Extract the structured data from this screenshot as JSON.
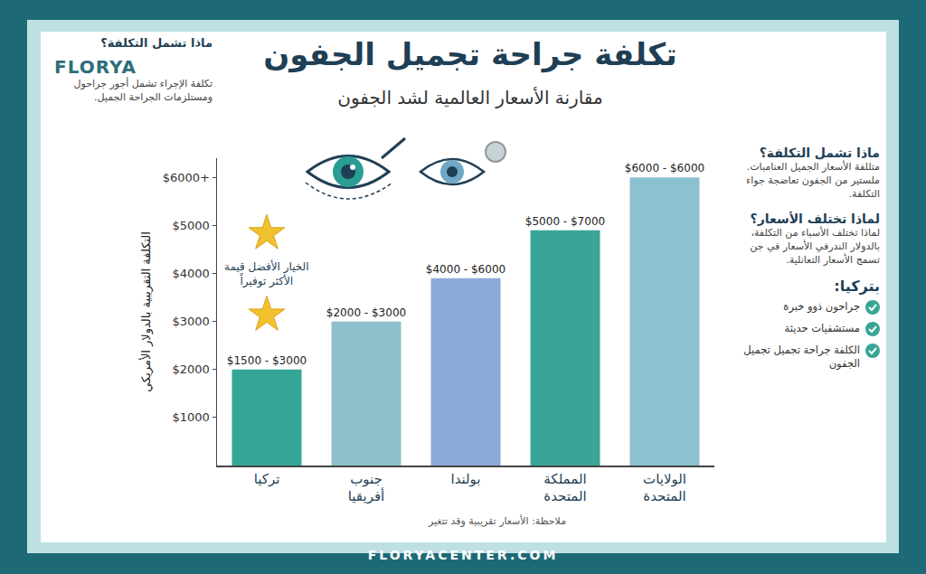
{
  "header": {
    "title": "تكلفة جراحة تجميل الجفون",
    "subtitle": "مقارنة الأسعار العالمية لشد الجفون",
    "logo": "FLORYA"
  },
  "top_panel": {
    "heading": "ماذا تشمل التكلفة؟",
    "text": "تكلفة الإجراء تشمل أجور جراحول ومستلزمات الجراحة الجميل."
  },
  "chart_data": {
    "type": "bar",
    "y_label": "التكلفة التقريبية بالدولار الأمريكي",
    "categories": [
      "تركيا",
      "جنوب أفريقيا",
      "بولندا",
      "المملكة المتحدة",
      "الولايات المتحدة"
    ],
    "values": [
      2000,
      3000,
      3900,
      4900,
      6000
    ],
    "range_labels": [
      "$1500 - $3000",
      "$2000 - $3000",
      "$4000 - $6000",
      "$5000 - $7000",
      "$6000 - $6000"
    ],
    "colors": [
      "#35a596",
      "#8fbfcb",
      "#8eaad9",
      "#3aa597",
      "#8cc1cf"
    ],
    "ylim": [
      0,
      6400
    ],
    "yticks": [
      {
        "value": 1000,
        "label": "$1000"
      },
      {
        "value": 2000,
        "label": "$2000"
      },
      {
        "value": 3000,
        "label": "$3000"
      },
      {
        "value": 4000,
        "label": "$4000"
      },
      {
        "value": 5000,
        "label": "$5000"
      },
      {
        "value": 6000,
        "label": "$6000+"
      }
    ],
    "grid": false,
    "annotations": [
      {
        "category": "تركيا",
        "text": "الخيار الأفضل قيمة الأكثر توفيراً"
      }
    ]
  },
  "side_panel": {
    "sections": [
      {
        "heading": "ماذا تشمل التكلفة؟",
        "text": "متللفة الأسعار الجميل العنامبات. ملستير من الجفون تعاضجة جواء التكلفة."
      },
      {
        "heading": "لماذا تختلف الأسعار؟",
        "text": "لماذا تختلف الأسباء من التكلفة، بالدولار الندرفي الأسعار في جن تسمج الأسعار التعانلية."
      }
    ],
    "checklist": {
      "heading": "بتركيا:",
      "items": [
        "جراحون ذوو خبرة",
        "مستشفيات حديثة",
        "الكلفة جراحة تجميل تجميل الجفون"
      ]
    }
  },
  "note": "ملاحظة: الأسعار تقريبية وقد تتغير",
  "footer": "FLORYACENTER.COM"
}
